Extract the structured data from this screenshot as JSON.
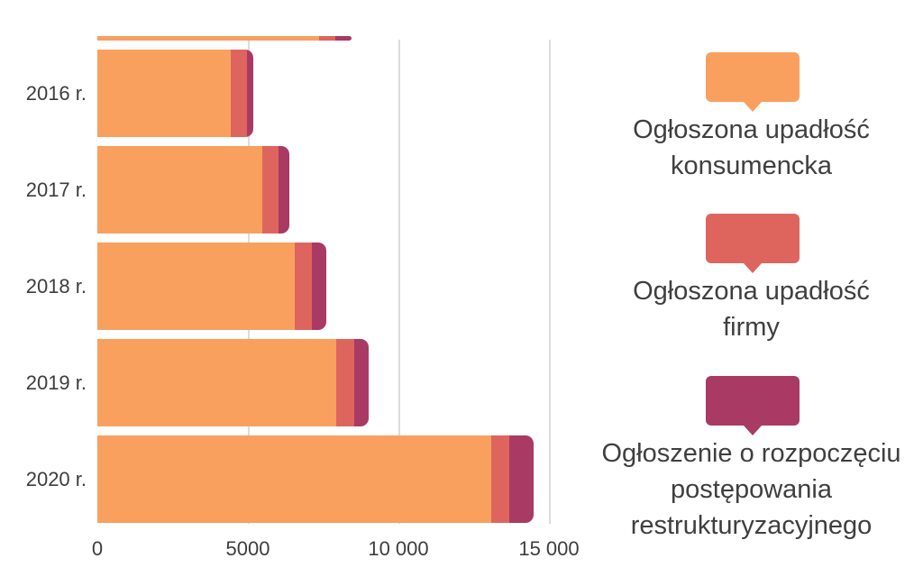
{
  "chart_data": {
    "type": "bar",
    "orientation": "horizontal",
    "stacked": true,
    "title": "",
    "categories": [
      "2016 r.",
      "2017 r.",
      "2018 r.",
      "2019 r.",
      "2020 r."
    ],
    "series": [
      {
        "name": "Ogłoszona upadłość konsumencka",
        "color": "#F9A05F",
        "values": [
          4434,
          5470,
          6552,
          7944,
          13084
        ]
      },
      {
        "name": "Ogłoszona upadłość firmy",
        "color": "#DE655E",
        "values": [
          530,
          537,
          558,
          586,
          587
        ]
      },
      {
        "name": "Ogłoszenie o rozpoczęciu postępowania restrukturyzacyjnego",
        "color": "#A93A63",
        "values": [
          212,
          348,
          465,
          465,
          800
        ]
      }
    ],
    "x_axis": {
      "tick_labels": [
        "0",
        "5000",
        "10 000",
        "15 000"
      ],
      "tick_values": [
        0,
        5000,
        10000,
        15000
      ],
      "min": 0,
      "max": 15000
    },
    "grid": "vertical-lines",
    "legend_position": "right",
    "partial_cropped_bar_top": {
      "note": "thin sliver of a cropped bar visible at top edge of plot",
      "values": [
        7370,
        530,
        530
      ]
    }
  },
  "legend": {
    "items": [
      {
        "lines": [
          "Ogłoszona upadłość",
          "konsumencka"
        ],
        "color": "#F9A05F"
      },
      {
        "lines": [
          "Ogłoszona upadłość",
          "firmy"
        ],
        "color": "#DE655E"
      },
      {
        "lines": [
          "Ogłoszenie o rozpoczęciu",
          "postępowania",
          "restrukturyzacyjnego"
        ],
        "color": "#A93A63"
      }
    ]
  },
  "colors": {
    "background": "#ffffff",
    "gridline": "#dcdcdc",
    "axis_text": "#3d3d3d",
    "legend_text": "#3f3f3f"
  }
}
